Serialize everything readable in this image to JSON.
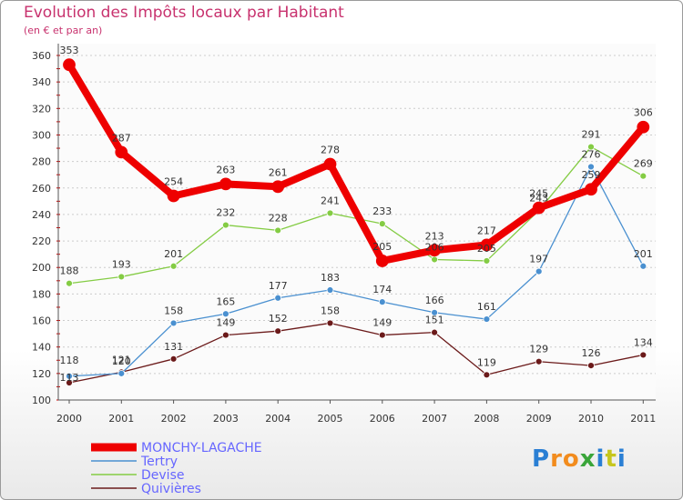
{
  "chart_data": {
    "type": "line",
    "title": "Evolution des Impôts locaux par Habitant",
    "subtitle": "(en € et par an)",
    "xlabel": "",
    "ylabel": "",
    "categories": [
      "2000",
      "2001",
      "2002",
      "2003",
      "2004",
      "2005",
      "2006",
      "2007",
      "2008",
      "2009",
      "2010",
      "2011"
    ],
    "ylim": [
      100,
      360
    ],
    "yticks": [
      100,
      120,
      140,
      160,
      180,
      200,
      220,
      240,
      260,
      280,
      300,
      320,
      340,
      360
    ],
    "ytick_labels": [
      "100",
      "120",
      "140",
      "160",
      "180",
      "200",
      "220",
      "240",
      "260",
      "280",
      "300",
      "320",
      "340",
      "360"
    ],
    "grid": "horizontal-dashed",
    "legend_position": "bottom-left",
    "series": [
      {
        "name": "Quivières",
        "color": "#6b1a1a",
        "values": [
          113,
          121,
          131,
          149,
          152,
          158,
          149,
          151,
          119,
          129,
          126,
          134
        ],
        "labels": [
          "113",
          "121",
          "131",
          "149",
          "152",
          "158",
          "149",
          "151",
          "119",
          "129",
          "126",
          "134"
        ]
      },
      {
        "name": "Devise",
        "color": "#84cc44",
        "values": [
          188,
          193,
          201,
          232,
          228,
          241,
          233,
          206,
          205,
          243,
          291,
          269
        ],
        "labels": [
          "188",
          "193",
          "201",
          "232",
          "228",
          "241",
          "233",
          "206",
          "205",
          "243",
          "291",
          "269"
        ]
      },
      {
        "name": "Tertry",
        "color": "#4a90d0",
        "values": [
          118,
          120,
          158,
          165,
          177,
          183,
          174,
          166,
          161,
          197,
          276,
          201
        ],
        "labels": [
          "118",
          "120",
          "158",
          "165",
          "177",
          "183",
          "174",
          "166",
          "161",
          "197",
          "276",
          "201"
        ]
      },
      {
        "name": "MONCHY-LAGACHE",
        "color": "#ee0000",
        "values": [
          353,
          287,
          254,
          263,
          261,
          278,
          205,
          213,
          217,
          245,
          259,
          306
        ],
        "labels": [
          "353",
          "287",
          "254",
          "263",
          "261",
          "278",
          "205",
          "213",
          "217",
          "245",
          "259",
          "306"
        ]
      }
    ],
    "legend": [
      {
        "name": "MONCHY-LAGACHE",
        "color": "#ee0000",
        "text_color": "#6666ff"
      },
      {
        "name": "Tertry",
        "color": "#4a90d0",
        "text_color": "#6666ff"
      },
      {
        "name": "Devise",
        "color": "#84cc44",
        "text_color": "#6666ff"
      },
      {
        "name": "Quivières",
        "color": "#6b1a1a",
        "text_color": "#6666ff"
      }
    ]
  },
  "brand": {
    "name": "Proxiti",
    "letters": [
      "P",
      "r",
      "o",
      "x",
      "i",
      "t",
      "i"
    ],
    "colors": [
      "#2a7fd4",
      "#f28c1e",
      "#f28c1e",
      "#3aa53a",
      "#2a7fd4",
      "#c6c61e",
      "#2a7fd4"
    ]
  }
}
